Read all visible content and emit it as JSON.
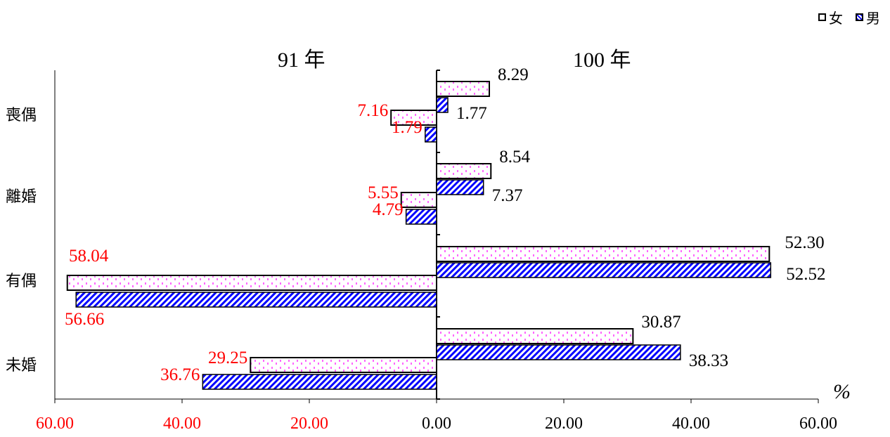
{
  "legend": {
    "female": "女",
    "male": "男"
  },
  "chart_data": {
    "type": "bar",
    "orientation": "horizontal-diverging",
    "periods": [
      "91 年",
      "100 年"
    ],
    "unit": "%",
    "categories": [
      "喪偶",
      "離婚",
      "有偶",
      "未婚"
    ],
    "series": [
      {
        "name": "女",
        "period": "91 年",
        "values": [
          7.16,
          5.55,
          58.04,
          29.25
        ],
        "labels": [
          "7.16",
          "5.55",
          "58.04",
          "29.25"
        ]
      },
      {
        "name": "男",
        "period": "91 年",
        "values": [
          1.79,
          4.79,
          56.66,
          36.76
        ],
        "labels": [
          "1.79",
          "4.79",
          "56.66",
          "36.76"
        ]
      },
      {
        "name": "女",
        "period": "100 年",
        "values": [
          8.29,
          8.54,
          52.3,
          30.87
        ],
        "labels": [
          "8.29",
          "8.54",
          "52.30",
          "30.87"
        ]
      },
      {
        "name": "男",
        "period": "100 年",
        "values": [
          1.77,
          7.37,
          52.52,
          38.33
        ],
        "labels": [
          "1.77",
          "7.37",
          "52.52",
          "38.33"
        ]
      }
    ],
    "x_ticks": [
      "60.00",
      "40.00",
      "20.00",
      "0.00",
      "20.00",
      "40.00",
      "60.00"
    ],
    "xlim": [
      -60,
      60
    ],
    "colors": {
      "left_labels": "#ff0000",
      "right_labels": "#000000",
      "male_fill": "#0000ff",
      "female_fill": "#ff66ff"
    }
  }
}
